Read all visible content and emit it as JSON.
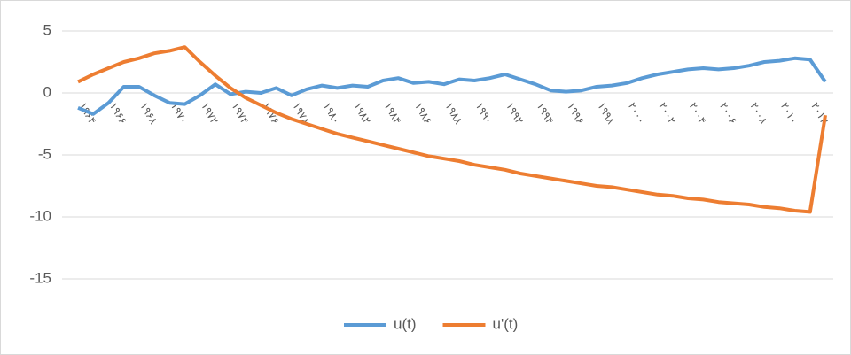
{
  "chart_data": {
    "type": "line",
    "categories": [
      "۱۹۶۴",
      null,
      "۱۹۶۶",
      null,
      "۱۹۶۸",
      null,
      "۱۹۷۰",
      null,
      "۱۹۷۲",
      null,
      "۱۹۷۴",
      null,
      "۱۹۷۶",
      null,
      "۱۹۷۸",
      null,
      "۱۹۸۰",
      null,
      "۱۹۸۲",
      null,
      "۱۹۸۴",
      null,
      "۱۹۸۶",
      null,
      "۱۹۸۸",
      null,
      "۱۹۹۰",
      null,
      "۱۹۹۲",
      null,
      "۱۹۹۴",
      null,
      "۱۹۹۶",
      null,
      "۱۹۹۸",
      null,
      "۲۰۰۰",
      null,
      "۲۰۰۲",
      null,
      "۲۰۰۴",
      null,
      "۲۰۰۶",
      null,
      "۲۰۰۸",
      null,
      "۲۰۱۰",
      null,
      "۲۰۱۲",
      null
    ],
    "series": [
      {
        "name": "u(t)",
        "color": "#5b9bd5",
        "values": [
          -1.2,
          -1.7,
          -0.8,
          0.5,
          0.5,
          -0.2,
          -0.8,
          -0.9,
          -0.2,
          0.7,
          -0.1,
          0.1,
          0,
          0.4,
          -0.2,
          0.3,
          0.6,
          0.4,
          0.6,
          0.5,
          1.0,
          1.2,
          0.8,
          0.9,
          0.7,
          1.1,
          1.0,
          1.2,
          1.5,
          1.1,
          0.7,
          0.2,
          0.1,
          0.2,
          0.5,
          0.6,
          0.8,
          1.2,
          1.5,
          1.7,
          1.9,
          2.0,
          1.9,
          2.0,
          2.2,
          2.5,
          2.6,
          2.8,
          2.7,
          0.9
        ]
      },
      {
        "name": "u'(t)",
        "color": "#ed7d31",
        "values": [
          0.9,
          1.5,
          2.0,
          2.5,
          2.8,
          3.2,
          3.4,
          3.7,
          2.5,
          1.4,
          0.4,
          -0.4,
          -1.0,
          -1.6,
          -2.1,
          -2.5,
          -2.9,
          -3.3,
          -3.6,
          -3.9,
          -4.2,
          -4.5,
          -4.8,
          -5.1,
          -5.3,
          -5.5,
          -5.8,
          -6.0,
          -6.2,
          -6.5,
          -6.7,
          -6.9,
          -7.1,
          -7.3,
          -7.5,
          -7.6,
          -7.8,
          -8.0,
          -8.2,
          -8.3,
          -8.5,
          -8.6,
          -8.8,
          -8.9,
          -9.0,
          -9.2,
          -9.3,
          -9.5,
          -9.6,
          -1.8
        ]
      }
    ],
    "ylim": [
      -15,
      5
    ],
    "yticks": [
      -15,
      -10,
      -5,
      0,
      5
    ],
    "grid": true,
    "legend": "bottom"
  }
}
